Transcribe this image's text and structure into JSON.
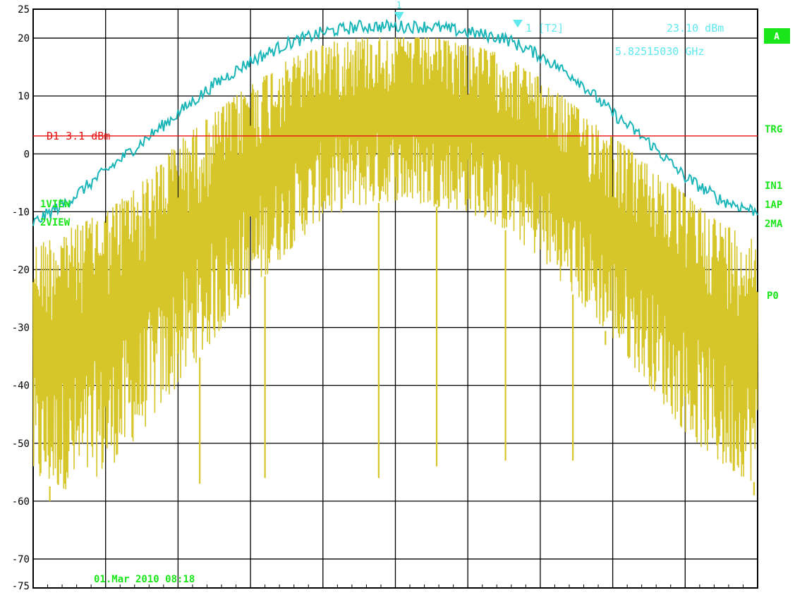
{
  "chart_data": {
    "type": "line",
    "title": "",
    "xlabel": "",
    "ylabel": "",
    "ylim": [
      -75,
      25
    ],
    "xlim": [
      0,
      1
    ],
    "y_ticks": [
      20,
      10,
      0,
      -10,
      -20,
      -30,
      -40,
      -50,
      -60,
      -70
    ],
    "y_edge_labels": {
      "top": "25",
      "bottom": "-75"
    },
    "grid": true,
    "series": [
      {
        "color": "#d6c62a",
        "x": [
          0.0,
          0.05,
          0.1,
          0.15,
          0.2,
          0.25,
          0.3,
          0.35,
          0.4,
          0.45,
          0.5,
          0.55,
          0.6,
          0.65,
          0.7,
          0.75,
          0.8,
          0.85,
          0.9,
          0.95,
          1.0
        ],
        "upper": [
          -16,
          -13,
          -10,
          -5,
          2,
          7,
          12,
          16,
          19,
          20,
          20,
          20,
          19,
          17,
          13,
          8,
          3,
          -2,
          -7,
          -12,
          -15
        ],
        "lower": [
          -57,
          -58,
          -55,
          -48,
          -40,
          -32,
          -24,
          -17,
          -11,
          -9,
          -8,
          -9,
          -10,
          -13,
          -18,
          -25,
          -32,
          -40,
          -48,
          -54,
          -57
        ],
        "min_spikes": [
          {
            "x": 0.023,
            "y": -60
          },
          {
            "x": 0.23,
            "y": -57
          },
          {
            "x": 0.32,
            "y": -56
          },
          {
            "x": 0.477,
            "y": -56
          },
          {
            "x": 0.557,
            "y": -54
          },
          {
            "x": 0.652,
            "y": -53
          },
          {
            "x": 0.745,
            "y": -53
          },
          {
            "x": 0.79,
            "y": -33
          },
          {
            "x": 0.995,
            "y": -59
          }
        ]
      },
      {
        "color": "#1ab5b8",
        "x": [
          0.0,
          0.05,
          0.1,
          0.15,
          0.2,
          0.25,
          0.3,
          0.35,
          0.4,
          0.45,
          0.5,
          0.55,
          0.6,
          0.65,
          0.7,
          0.75,
          0.8,
          0.85,
          0.9,
          0.95,
          1.0
        ],
        "y": [
          -12,
          -8,
          -3,
          2,
          7,
          12,
          16,
          19,
          21,
          22,
          22,
          22,
          21,
          20,
          17,
          13,
          7,
          2,
          -4,
          -8,
          -10
        ]
      }
    ],
    "reference_line": {
      "label": "D1  3.1  dBm",
      "y": 3.1,
      "color": "#e81010"
    },
    "marker": {
      "x": 0.505,
      "y": 23.1,
      "id": "1"
    }
  },
  "annotations": {
    "marker_readout": "1  [T2]",
    "marker_level": "23.10  dBm",
    "marker_freq": "5.82515030  GHz",
    "trace1": "1VIEW",
    "trace2": "2VIEW",
    "timestamp": "01.Mar 2010  08:18"
  },
  "side_labels": {
    "a_badge": "A",
    "trg": "TRG",
    "in1": "IN1",
    "ap1": "1AP",
    "ma2": "2MA",
    "p0": "P0"
  },
  "colors": {
    "grid": "#000000",
    "annotation": "#5fe8ee",
    "status": "#19e619",
    "badge_bg": "#19e619"
  }
}
